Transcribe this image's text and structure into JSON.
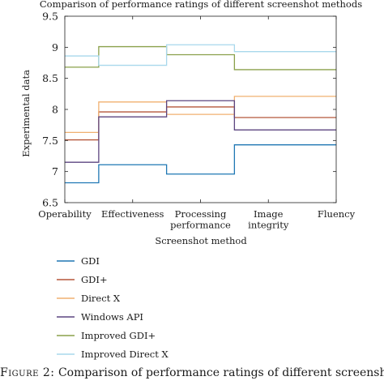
{
  "caption": {
    "label": "Figure 2:",
    "text": "Comparison of performance ratings of different screenshot methods."
  },
  "chart_data": {
    "type": "line",
    "step": "mid",
    "title": "Comparison of performance ratings of different screenshot methods",
    "xlabel": "Screenshot method",
    "ylabel": "Experimental data",
    "categories": [
      "Operability",
      "Effectiveness",
      "Processing performance",
      "Image integrity",
      "Fluency"
    ],
    "category_tick_labels": [
      [
        "Operability"
      ],
      [
        "Effectiveness"
      ],
      [
        "Processing",
        "performance"
      ],
      [
        "Image",
        "integrity"
      ],
      [
        "Fluency"
      ]
    ],
    "ylim": [
      6.5,
      9.5
    ],
    "yticks": [
      "6.5",
      "7",
      "7.5",
      "8",
      "8.5",
      "9",
      "9.5"
    ],
    "grid": false,
    "legend_position": "below",
    "series": [
      {
        "name": "GDI",
        "color": "#1f77b4",
        "values": [
          6.82,
          7.11,
          6.96,
          7.43,
          7.43
        ]
      },
      {
        "name": "GDI+",
        "color": "#b5573a",
        "values": [
          7.51,
          7.96,
          8.04,
          7.87,
          7.87
        ]
      },
      {
        "name": "Direct X",
        "color": "#f0b070",
        "values": [
          7.63,
          8.12,
          7.92,
          8.21,
          8.21
        ]
      },
      {
        "name": "Windows API",
        "color": "#5c4580",
        "values": [
          7.15,
          7.88,
          8.14,
          7.67,
          7.67
        ]
      },
      {
        "name": "Improved GDI+",
        "color": "#8aa04a",
        "values": [
          8.68,
          9.01,
          8.88,
          8.64,
          8.64
        ]
      },
      {
        "name": "Improved Direct X",
        "color": "#a8d8ec",
        "values": [
          8.86,
          8.71,
          9.04,
          8.93,
          8.93
        ]
      }
    ]
  }
}
